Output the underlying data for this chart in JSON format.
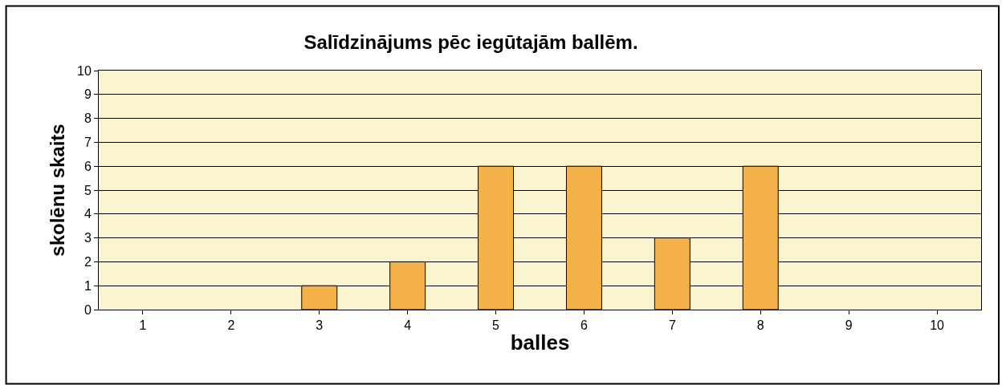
{
  "chart_data": {
    "type": "bar",
    "title": "Salīdzinājums pēc iegūtajām ballēm.",
    "xlabel": "balles",
    "ylabel": "skolēnu skaits",
    "categories": [
      "1",
      "2",
      "3",
      "4",
      "5",
      "6",
      "7",
      "8",
      "9",
      "10"
    ],
    "values": [
      0,
      0,
      1,
      2,
      6,
      6,
      3,
      6,
      0,
      0
    ],
    "color": "#f6b24a",
    "ylim": [
      0,
      10
    ],
    "yticks": [
      0,
      1,
      2,
      3,
      4,
      5,
      6,
      7,
      8,
      9,
      10
    ],
    "grid": "y",
    "legend": false
  }
}
